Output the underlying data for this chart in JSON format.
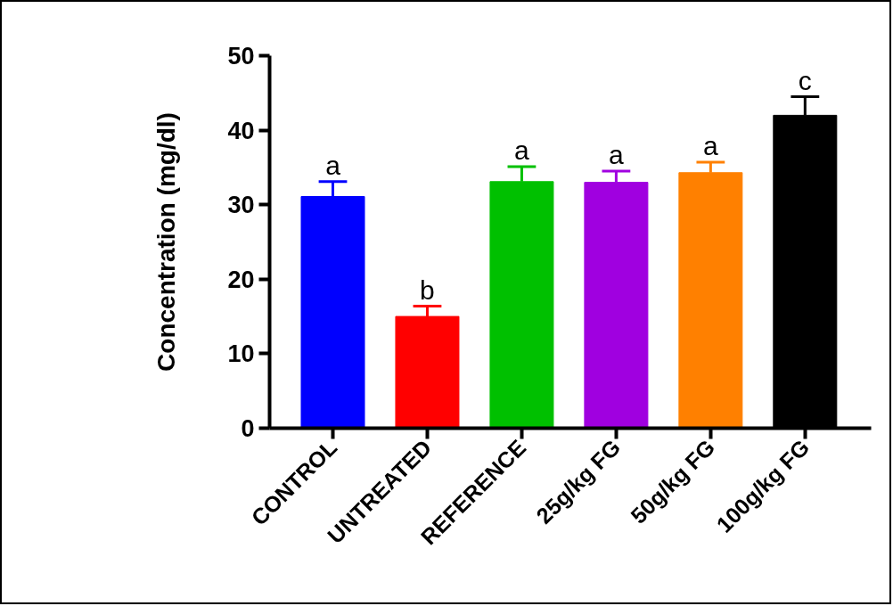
{
  "chart_data": {
    "type": "bar",
    "ylabel": "Concentration (mg/dl)",
    "categories": [
      "CONTROL",
      "UNTREATED",
      "REFERENCE",
      "25g/kg FG",
      "50g/kg FG",
      "100g/kg FG"
    ],
    "values": [
      31.1,
      15.0,
      33.1,
      33.0,
      34.3,
      42.0
    ],
    "colors": [
      "#0000ff",
      "#ff0000",
      "#00c000",
      "#a000e0",
      "#ff8000",
      "#000000"
    ],
    "errors": [
      [
        31.1,
        33.1
      ],
      [
        15.0,
        16.4
      ],
      [
        33.1,
        35.1
      ],
      [
        33.0,
        34.5
      ],
      [
        34.3,
        35.7
      ],
      [
        42.0,
        44.5
      ]
    ],
    "ylim": [
      0,
      50
    ],
    "yticks": [
      0,
      10,
      20,
      30,
      40,
      50
    ],
    "grid": false,
    "annotations": [
      {
        "text": "a",
        "x": "CONTROL",
        "y": 33.1
      },
      {
        "text": "b",
        "x": "UNTREATED",
        "y": 16.4
      },
      {
        "text": "a",
        "x": "REFERENCE",
        "y": 35.1
      },
      {
        "text": "a",
        "x": "25g/kg FG",
        "y": 34.5
      },
      {
        "text": "a",
        "x": "50g/kg FG",
        "y": 35.7
      },
      {
        "text": "c",
        "x": "100g/kg FG",
        "y": 44.5
      }
    ]
  }
}
